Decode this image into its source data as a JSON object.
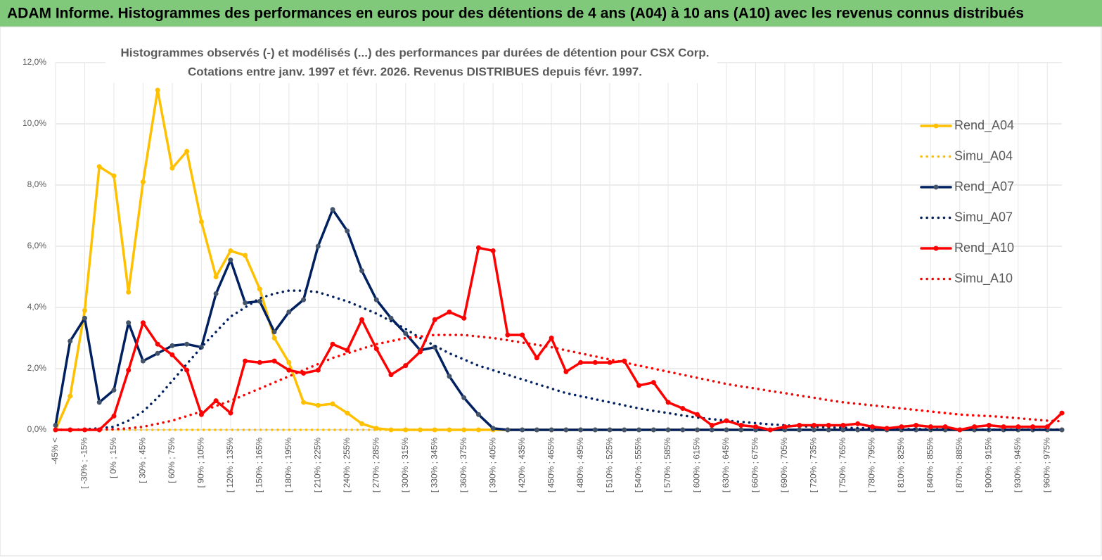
{
  "header": {
    "title": "ADAM Informe. Histogrammes des performances en euros pour des détentions de 4 ans (A04) à 10 ans (A10) avec les revenus connus distribués"
  },
  "chart_data": {
    "type": "line",
    "title": "Histogrammes observés (-) et modélisés (...) des performances par durées de détention pour CSX Corp.",
    "subtitle": "Cotations entre janv. 1997 et févr. 2026. Revenus DISTRIBUES depuis févr. 1997.",
    "categories": [
      "-45% <",
      null,
      "[ -30% ; -15%",
      null,
      "[ 0% ; 15%",
      null,
      "[ 30% ; 45%",
      null,
      "[ 60% ; 75%",
      null,
      "[ 90% ; 105%",
      null,
      "[ 120% ; 135%",
      null,
      "[ 150% ; 165%",
      null,
      "[ 180% ; 195%",
      null,
      "[ 210% ; 225%",
      null,
      "[ 240% ; 255%",
      null,
      "[ 270% ; 285%",
      null,
      "[ 300% ; 315%",
      null,
      "[ 330% ; 345%",
      null,
      "[ 360% ; 375%",
      null,
      "[ 390% ; 405%",
      null,
      "[ 420% ; 435%",
      null,
      "[ 450% ; 465%",
      null,
      "[ 480% ; 495%",
      null,
      "[ 510% ; 525%",
      null,
      "[ 540% ; 555%",
      null,
      "[ 570% ; 585%",
      null,
      "[ 600% ; 615%",
      null,
      "[ 630% ; 645%",
      null,
      "[ 660% ; 675%",
      null,
      "[ 690% ; 705%",
      null,
      "[ 720% ; 735%",
      null,
      "[ 750% ; 765%",
      null,
      "[ 780% ; 795%",
      null,
      "[ 810% ; 825%",
      null,
      "[ 840% ; 855%",
      null,
      "[ 870% ; 885%",
      null,
      "[ 900% ; 915%",
      null,
      "[ 930% ; 945%",
      null,
      "[ 960% ; 975%",
      null
    ],
    "ylim": [
      0,
      12
    ],
    "yticks": [
      {
        "value": 0,
        "label": "0,0%"
      },
      {
        "value": 2,
        "label": "2,0%"
      },
      {
        "value": 4,
        "label": "4,0%"
      },
      {
        "value": 6,
        "label": "6,0%"
      },
      {
        "value": 8,
        "label": "8,0%"
      },
      {
        "value": 10,
        "label": "10,0%"
      },
      {
        "value": 12,
        "label": "12,0%"
      }
    ],
    "grid": true,
    "legend": "right",
    "series": [
      {
        "name": "Rend_A04",
        "color": "#ffc000",
        "dash": "solid",
        "markers": true,
        "values": [
          0,
          1.1,
          3.9,
          8.6,
          8.3,
          4.5,
          8.1,
          11.1,
          8.55,
          9.1,
          6.8,
          5.0,
          5.85,
          5.7,
          4.6,
          3.0,
          2.2,
          0.9,
          0.8,
          0.85,
          0.55,
          0.2,
          0.05,
          0,
          0,
          0,
          0,
          0,
          0,
          0,
          0,
          0,
          0,
          0,
          0,
          0,
          0,
          0,
          0,
          0,
          0,
          0,
          0,
          0,
          0,
          0,
          0,
          0,
          0,
          0,
          0,
          0,
          0,
          0,
          0,
          0,
          0,
          0,
          0,
          0,
          0,
          0,
          0,
          0,
          0,
          0,
          0,
          0,
          0,
          0
        ]
      },
      {
        "name": "Simu_A04",
        "color": "#ffc000",
        "dash": "dotted",
        "markers": false,
        "values": [
          0,
          0,
          0,
          0,
          0,
          0,
          0,
          0,
          0,
          0,
          0,
          0,
          0,
          0,
          0,
          0,
          0,
          0,
          0,
          0,
          0,
          0,
          0,
          0,
          0,
          0,
          0,
          0,
          0,
          0,
          0,
          0,
          0,
          0,
          0,
          0,
          0,
          0,
          0,
          0,
          0,
          0,
          0,
          0,
          0,
          0,
          0,
          0,
          0,
          0,
          0,
          0,
          0,
          0,
          0,
          0,
          0,
          0,
          0,
          0,
          0,
          0,
          0,
          0,
          0,
          0,
          0,
          0,
          0,
          0
        ]
      },
      {
        "name": "Rend_A07",
        "color": "#002060",
        "dash": "solid",
        "markers": true,
        "values": [
          0.15,
          2.9,
          3.65,
          0.9,
          1.3,
          3.5,
          2.25,
          2.5,
          2.75,
          2.8,
          2.7,
          4.45,
          5.55,
          4.15,
          4.2,
          3.2,
          3.85,
          4.25,
          6.0,
          7.2,
          6.5,
          5.2,
          4.25,
          3.65,
          3.15,
          2.6,
          2.7,
          1.75,
          1.05,
          0.5,
          0.05,
          0,
          0,
          0,
          0,
          0,
          0,
          0,
          0,
          0,
          0,
          0,
          0,
          0,
          0,
          0,
          0,
          0,
          0,
          0,
          0,
          0,
          0,
          0,
          0,
          0,
          0,
          0,
          0,
          0,
          0,
          0,
          0,
          0,
          0,
          0,
          0,
          0,
          0,
          0
        ]
      },
      {
        "name": "Simu_A07",
        "color": "#002060",
        "dash": "dotted",
        "markers": false,
        "values": [
          0,
          0,
          0.02,
          0.05,
          0.1,
          0.3,
          0.6,
          1.05,
          1.6,
          2.15,
          2.7,
          3.2,
          3.7,
          4.0,
          4.3,
          4.45,
          4.55,
          4.55,
          4.5,
          4.35,
          4.2,
          4.0,
          3.8,
          3.55,
          3.3,
          3.0,
          2.75,
          2.5,
          2.3,
          2.1,
          1.95,
          1.8,
          1.65,
          1.5,
          1.35,
          1.2,
          1.1,
          1.0,
          0.9,
          0.8,
          0.7,
          0.62,
          0.55,
          0.47,
          0.4,
          0.35,
          0.3,
          0.26,
          0.22,
          0.18,
          0.15,
          0.12,
          0.1,
          0.08,
          0.07,
          0.06,
          0.05,
          0.04,
          0.03,
          0.03,
          0.02,
          0.02,
          0.02,
          0.01,
          0.01,
          0.01,
          0.01,
          0.01,
          0.01,
          0.01
        ]
      },
      {
        "name": "Rend_A10",
        "color": "#ff0000",
        "dash": "solid",
        "markers": true,
        "values": [
          0,
          0,
          0,
          0,
          0.45,
          1.95,
          3.5,
          2.8,
          2.45,
          1.95,
          0.5,
          0.95,
          0.55,
          2.25,
          2.2,
          2.25,
          1.95,
          1.85,
          1.95,
          2.8,
          2.6,
          3.6,
          2.65,
          1.8,
          2.1,
          2.55,
          3.6,
          3.85,
          3.65,
          5.95,
          5.85,
          3.1,
          3.1,
          2.35,
          3.0,
          1.9,
          2.2,
          2.2,
          2.2,
          2.25,
          1.45,
          1.55,
          0.9,
          0.7,
          0.5,
          0.15,
          0.3,
          0.15,
          0.1,
          0,
          0.1,
          0.15,
          0.15,
          0.15,
          0.15,
          0.2,
          0.1,
          0.05,
          0.1,
          0.15,
          0.1,
          0.1,
          0,
          0.1,
          0.15,
          0.1,
          0.1,
          0.1,
          0.1,
          0.55
        ]
      },
      {
        "name": "Simu_A10",
        "color": "#ff0000",
        "dash": "dotted",
        "markers": false,
        "values": [
          0,
          0,
          0,
          0.01,
          0.02,
          0.05,
          0.1,
          0.2,
          0.3,
          0.45,
          0.6,
          0.78,
          0.95,
          1.15,
          1.35,
          1.55,
          1.75,
          1.95,
          2.15,
          2.35,
          2.5,
          2.65,
          2.8,
          2.9,
          3.0,
          3.05,
          3.1,
          3.1,
          3.1,
          3.05,
          3.0,
          2.93,
          2.85,
          2.78,
          2.7,
          2.6,
          2.5,
          2.4,
          2.3,
          2.2,
          2.1,
          2.0,
          1.9,
          1.8,
          1.7,
          1.6,
          1.5,
          1.42,
          1.35,
          1.27,
          1.2,
          1.12,
          1.05,
          0.97,
          0.9,
          0.85,
          0.8,
          0.75,
          0.7,
          0.65,
          0.6,
          0.55,
          0.5,
          0.47,
          0.45,
          0.42,
          0.38,
          0.34,
          0.3,
          0.28
        ]
      }
    ]
  }
}
